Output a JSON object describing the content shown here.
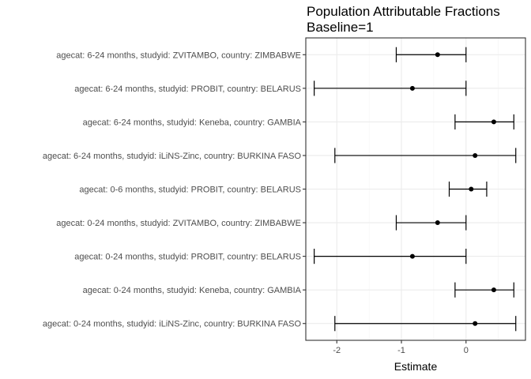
{
  "chart_data": {
    "type": "errorbar",
    "title_lines": [
      "Population Attributable Fractions",
      "Baseline=1"
    ],
    "xlabel": "Estimate",
    "ylabel": "",
    "xlim": [
      -2.48,
      0.92
    ],
    "xticks": [
      -2,
      -1,
      0
    ],
    "xtick_labels": [
      "-2",
      "-1",
      "0"
    ],
    "grid": true,
    "colors": {
      "mark": "#000000",
      "grid_major": "#ebebeb",
      "grid_minor": "#f5f5f5",
      "border": "#333333",
      "ticks": "#333333"
    },
    "categories": [
      "agecat: 0-24 months, studyid: iLiNS-Zinc, country: BURKINA FASO",
      "agecat: 0-24 months, studyid: Keneba, country: GAMBIA",
      "agecat: 0-24 months, studyid: PROBIT, country: BELARUS",
      "agecat: 0-24 months, studyid: ZVITAMBO, country: ZIMBABWE",
      "agecat: 0-6 months, studyid: PROBIT, country: BELARUS",
      "agecat: 6-24 months, studyid: iLiNS-Zinc, country: BURKINA FASO",
      "agecat: 6-24 months, studyid: Keneba, country: GAMBIA",
      "agecat: 6-24 months, studyid: PROBIT, country: BELARUS",
      "agecat: 6-24 months, studyid: ZVITAMBO, country: ZIMBABWE"
    ],
    "estimate": [
      0.14,
      0.43,
      -0.83,
      -0.44,
      0.08,
      0.14,
      0.43,
      -0.83,
      -0.44
    ],
    "lower": [
      -2.03,
      -0.17,
      -2.35,
      -1.08,
      -0.26,
      -2.03,
      -0.17,
      -2.35,
      -1.08
    ],
    "upper": [
      0.77,
      0.74,
      0.0,
      0.0,
      0.32,
      0.77,
      0.74,
      0.0,
      0.0
    ]
  }
}
